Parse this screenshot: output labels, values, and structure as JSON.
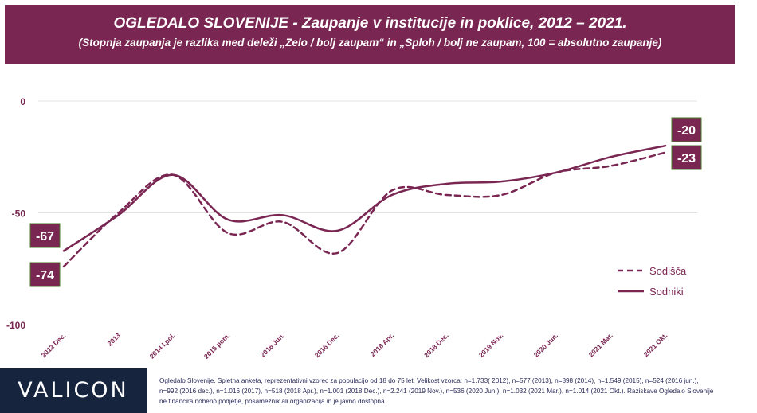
{
  "header": {
    "title": "OGLEDALO SLOVENIJE - Zaupanje v institucije in poklice, 2012 – 2021.",
    "subtitle": "(Stopnja zaupanja je razlika med deleži „Zelo / bolj zaupam“ in „Sploh / bolj ne zaupam, 100 = absolutno zaupanje)"
  },
  "chart_data": {
    "type": "line",
    "title": "OGLEDALO SLOVENIJE - Zaupanje v institucije in poklice, 2012 – 2021.",
    "subtitle": "(Stopnja zaupanja je razlika med deleži „Zelo / bolj zaupam“ in „Sploh / bolj ne zaupam, 100 = absolutno zaupanje)",
    "categories": [
      "2012 Dec.",
      "2013",
      "2014 I.pol.",
      "2015 pom.",
      "2016 Jun.",
      "2016 Dec.",
      "2018 Apr.",
      "2018 Dec.",
      "2019 Nov.",
      "2020 Jun.",
      "2021 Mar.",
      "2021 Okt."
    ],
    "yticks": [
      "0",
      "-50",
      "-100"
    ],
    "ylim": [
      -100,
      0
    ],
    "grid": "horizontal",
    "legend_position": "right",
    "series": [
      {
        "name": "Sodišča",
        "style": "dashed",
        "color": "#7a2652",
        "values": [
          -74,
          -50,
          -33,
          -59,
          -54,
          -68,
          -40,
          -42,
          -42,
          -32,
          -29,
          -23
        ]
      },
      {
        "name": "Sodniki",
        "style": "solid",
        "color": "#7a2652",
        "values": [
          -67,
          -51,
          -33,
          -53,
          -51,
          -58,
          -42,
          -37,
          -36,
          -32,
          -25,
          -20
        ]
      }
    ],
    "data_labels": {
      "start": {
        "Sodniki": "-67",
        "Sodišča": "-74"
      },
      "end": {
        "Sodniki": "-20",
        "Sodišča": "-23"
      }
    }
  },
  "footer": {
    "logo": "VALICON",
    "note": "Ogledalo Slovenije. Spletna anketa, reprezentativni vzorec za populacijo od 18 do 75 let. Velikost vzorca: n=1.733( 2012), n=577 (2013), n=898 (2014), n=1.549 (2015), n=524 (2016 jun.), n=992 (2016 dec.), n=1.016 (2017), n=518 (2018 Apr.), n=1.001 (2018 Dec.), n=2.241 (2019 Nov.), n=536 (2020 Jun.), n=1.032 (2021 Mar.), n=1.014 (2021 Okt.). Raziskave Ogledalo Slovenije ne financira nobeno podjetje, posameznik ali organizacija in je javno dostopna."
  }
}
